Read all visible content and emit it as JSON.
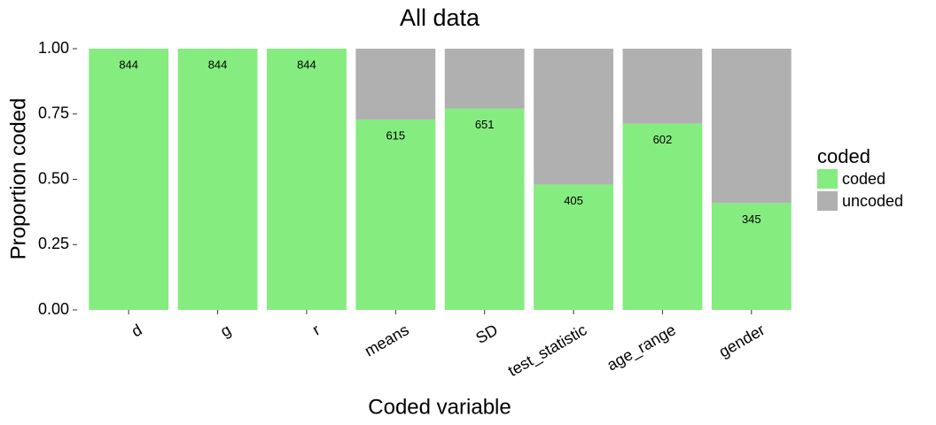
{
  "chart_data": {
    "type": "stacked_bar",
    "title": "All data",
    "x_label": "Coded variable",
    "y_label": "Proportion coded",
    "categories": [
      "d",
      "g",
      "r",
      "means",
      "SD",
      "test_statistic",
      "age_range",
      "gender"
    ],
    "series": [
      {
        "name": "coded",
        "color": "#85ec7f",
        "values": [
          1,
          1,
          1,
          0.729,
          0.771,
          0.48,
          0.713,
          0.409
        ],
        "counts": [
          844,
          844,
          844,
          615,
          651,
          405,
          602,
          345
        ]
      },
      {
        "name": "uncoded",
        "color": "#b0b0b0",
        "values": [
          0,
          0,
          0,
          0.271,
          0.229,
          0.52,
          0.287,
          0.591
        ]
      }
    ],
    "ylim": [
      0,
      1
    ],
    "yticks": [
      {
        "value": 0,
        "label": "0.00"
      },
      {
        "value": 0.25,
        "label": "0.25"
      },
      {
        "value": 0.5,
        "label": "0.50"
      },
      {
        "value": 0.75,
        "label": "0.75"
      },
      {
        "value": 1,
        "label": "1.00"
      }
    ],
    "legend_title": "coded",
    "legend_position": "right"
  }
}
